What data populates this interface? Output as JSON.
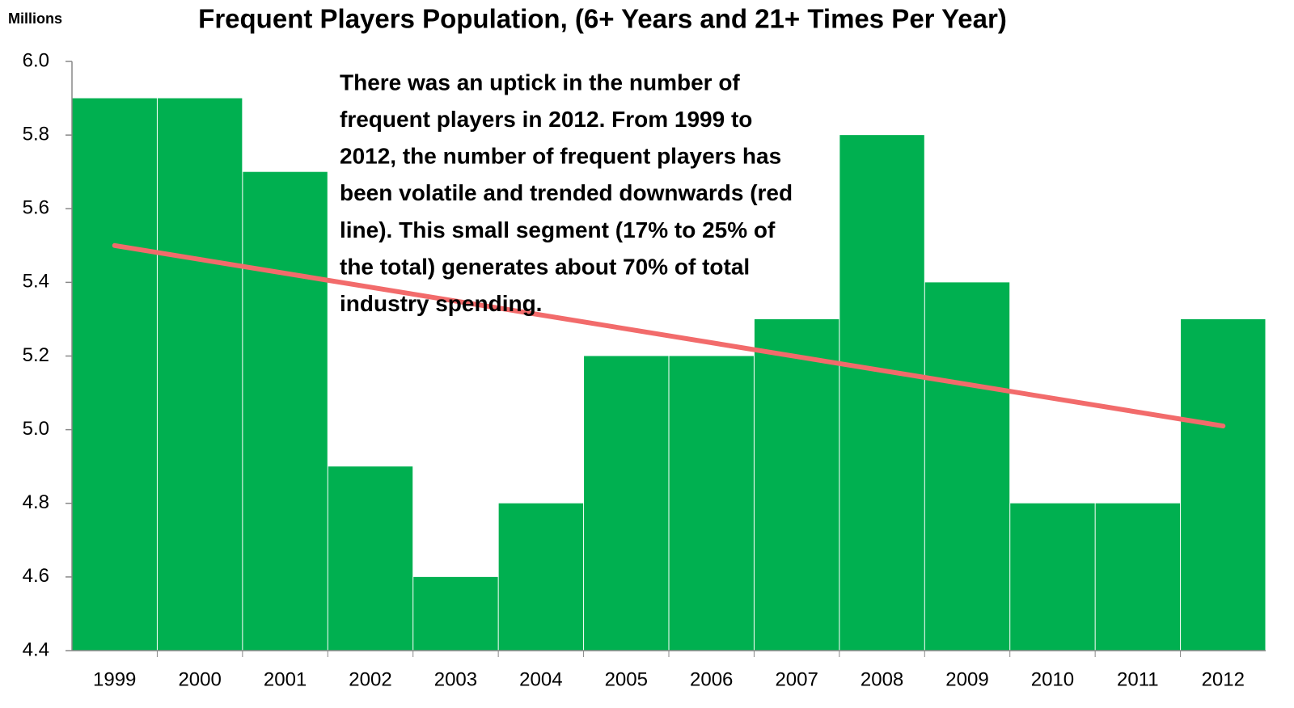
{
  "chart_data": {
    "type": "bar",
    "title": "Frequent Players Population, (6+ Years and 21+ Times Per Year)",
    "y_axis_label": "Millions",
    "annotation": [
      "There was an uptick in the number of",
      "frequent players in 2012. From 1999 to",
      "2012, the number of frequent players has",
      "been volatile and trended downwards (red",
      "line). This small segment (17% to 25% of",
      "the total) generates about 70% of total",
      "industry spending."
    ],
    "categories": [
      "1999",
      "2000",
      "2001",
      "2002",
      "2003",
      "2004",
      "2005",
      "2006",
      "2007",
      "2008",
      "2009",
      "2010",
      "2011",
      "2012"
    ],
    "values": [
      5.9,
      5.9,
      5.7,
      4.9,
      4.6,
      4.8,
      5.2,
      5.2,
      5.3,
      5.8,
      5.4,
      4.8,
      4.8,
      5.3
    ],
    "color": "#00b050",
    "trend": {
      "color": "#f26b6b",
      "values": [
        5.5,
        5.01
      ]
    },
    "ylim": [
      4.4,
      6.0
    ],
    "yticks": [
      {
        "value": 4.4,
        "label": "4.4"
      },
      4.6,
      4.8,
      {
        "value": 5.0,
        "label": "5.0"
      },
      5.2,
      5.4,
      5.6,
      5.8,
      {
        "value": 6.0,
        "label": "6.0"
      }
    ],
    "grid": false
  }
}
